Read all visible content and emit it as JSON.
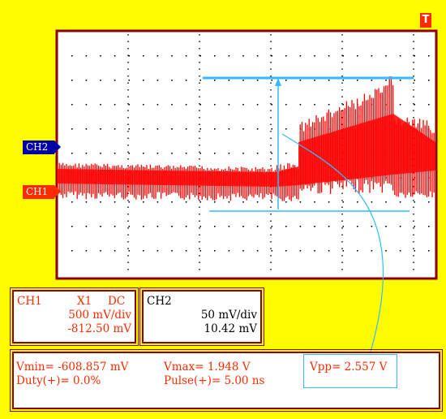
{
  "trigger_badge": "T",
  "channels": {
    "ch1_tag": "CH1",
    "ch2_tag": "CH2"
  },
  "ch1_panel": {
    "label": "CH1",
    "probe": "X1",
    "coupling": "DC",
    "scale": "500 mV/div",
    "offset": "-812.50 mV"
  },
  "ch2_panel": {
    "label": "CH2",
    "scale": "50 mV/div",
    "offset": "10.42 mV"
  },
  "measurements": {
    "vmin": "Vmin= -608.857 mV",
    "vmax": "Vmax= 1.948 V",
    "vpp": "Vpp= 2.557 V",
    "duty": "Duty(+)= 0.0%",
    "pulse": "Pulse(+)= 5.00 ns"
  },
  "colors": {
    "background": "#fffc00",
    "trace": "#ff0000",
    "cursor": "#33bbff",
    "frame": "#8a0000",
    "ch2": "#0000a8"
  }
}
